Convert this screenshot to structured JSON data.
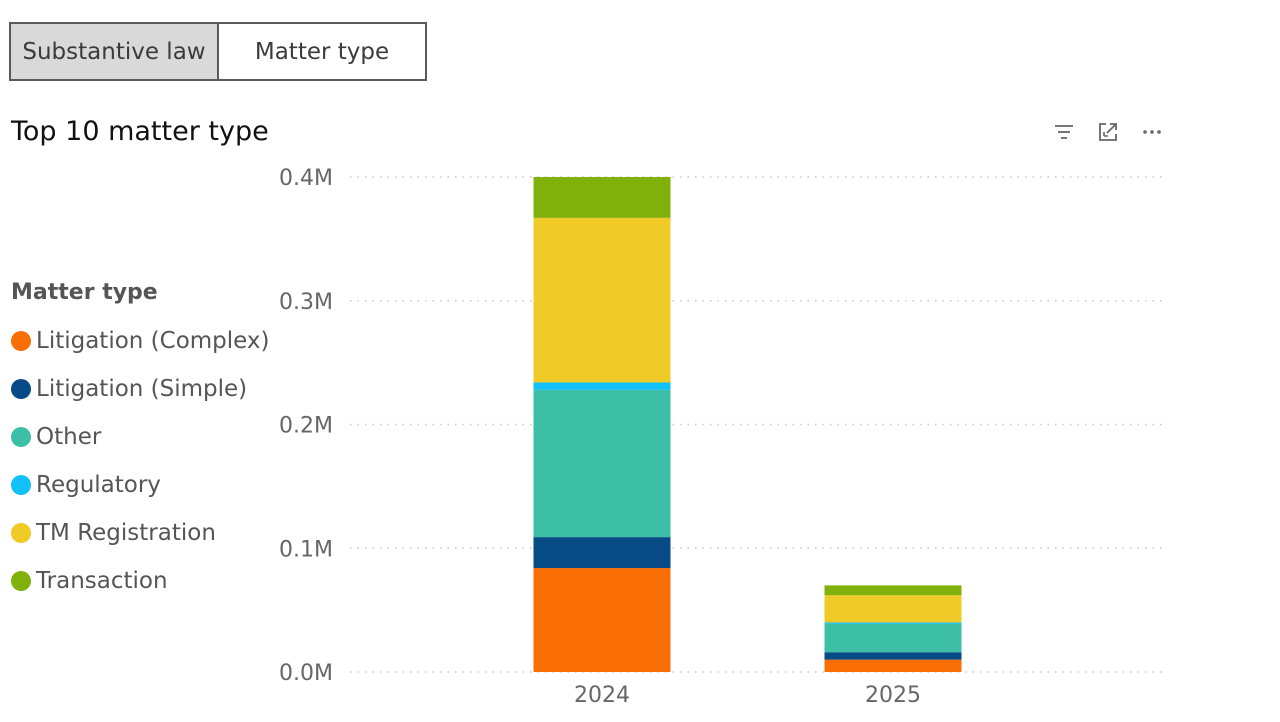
{
  "tabs": [
    {
      "label": "Substantive law",
      "active": true
    },
    {
      "label": "Matter type",
      "active": false
    }
  ],
  "visual": {
    "title": "Top 10 matter type",
    "icons": [
      "filter-icon",
      "focus-mode-icon",
      "more-options-icon"
    ]
  },
  "legend": {
    "title": "Matter type",
    "items": [
      {
        "label": "Litigation (Complex)",
        "color": "#F96F05"
      },
      {
        "label": "Litigation (Simple)",
        "color": "#064A86"
      },
      {
        "label": "Other",
        "color": "#3CBFA6"
      },
      {
        "label": "Regulatory",
        "color": "#12C1F7"
      },
      {
        "label": "TM Registration",
        "color": "#F0CA26"
      },
      {
        "label": "Transaction",
        "color": "#7FB10A"
      }
    ]
  },
  "chart_data": {
    "type": "bar",
    "stacked": true,
    "title": "Top 10 matter type",
    "xlabel": "",
    "ylabel": "",
    "categories": [
      "2024",
      "2025"
    ],
    "ylim": [
      0,
      400000
    ],
    "yticks": [
      {
        "value": 0,
        "label": "0.0M"
      },
      {
        "value": 100000,
        "label": "0.1M"
      },
      {
        "value": 200000,
        "label": "0.2M"
      },
      {
        "value": 300000,
        "label": "0.3M"
      },
      {
        "value": 400000,
        "label": "0.4M"
      }
    ],
    "grid": true,
    "legend_position": "left",
    "series": [
      {
        "name": "Litigation (Complex)",
        "color": "#F96F05",
        "values": [
          84000,
          10000
        ]
      },
      {
        "name": "Litigation (Simple)",
        "color": "#064A86",
        "values": [
          25000,
          6000
        ]
      },
      {
        "name": "Other",
        "color": "#3CBFA6",
        "values": [
          119000,
          23000
        ]
      },
      {
        "name": "Regulatory",
        "color": "#12C1F7",
        "values": [
          6000,
          1000
        ]
      },
      {
        "name": "TM Registration",
        "color": "#F0CA26",
        "values": [
          133000,
          22000
        ]
      },
      {
        "name": "Transaction",
        "color": "#7FB10A",
        "values": [
          33000,
          8000
        ]
      }
    ]
  }
}
